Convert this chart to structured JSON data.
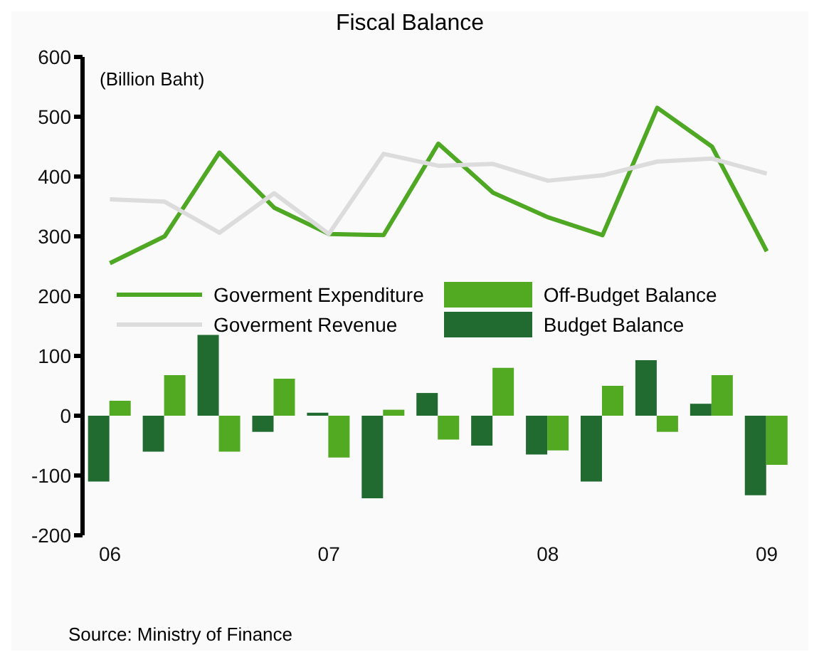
{
  "chart_data": {
    "type": "bar",
    "title": "Fiscal Balance",
    "ylabel": "(Billion Baht)",
    "annotations": [
      "Source: Ministry of Finance"
    ],
    "categories": [
      "06",
      null,
      null,
      null,
      "07",
      null,
      null,
      null,
      "08",
      null,
      null,
      null,
      "09"
    ],
    "series": [
      {
        "name": "Budget Balance",
        "color": "#216a30",
        "values": [
          -110,
          -60,
          135,
          -27,
          5,
          -138,
          38,
          -50,
          -65,
          -110,
          93,
          20,
          -133
        ]
      },
      {
        "name": "Off-Budget Balance",
        "color": "#52a922",
        "values": [
          25,
          68,
          -60,
          62,
          -70,
          10,
          -40,
          80,
          -58,
          50,
          -27,
          68,
          -82
        ]
      },
      {
        "name": "Goverment Expenditure",
        "type": "line",
        "color": "#4fa823",
        "values": [
          255,
          300,
          440,
          348,
          304,
          302,
          455,
          373,
          332,
          302,
          515,
          450,
          275
        ]
      },
      {
        "name": "Goverment Revenue",
        "type": "line",
        "color": "#dcdcdc",
        "values": [
          362,
          358,
          306,
          372,
          304,
          438,
          418,
          421,
          393,
          402,
          425,
          430,
          405
        ]
      }
    ],
    "ylim": [
      -200,
      600
    ],
    "yticks": [
      -200,
      -100,
      0,
      100,
      200,
      300,
      400,
      500,
      600
    ],
    "grid": false,
    "legend": "center",
    "marker": "none",
    "line_style": "solid"
  }
}
